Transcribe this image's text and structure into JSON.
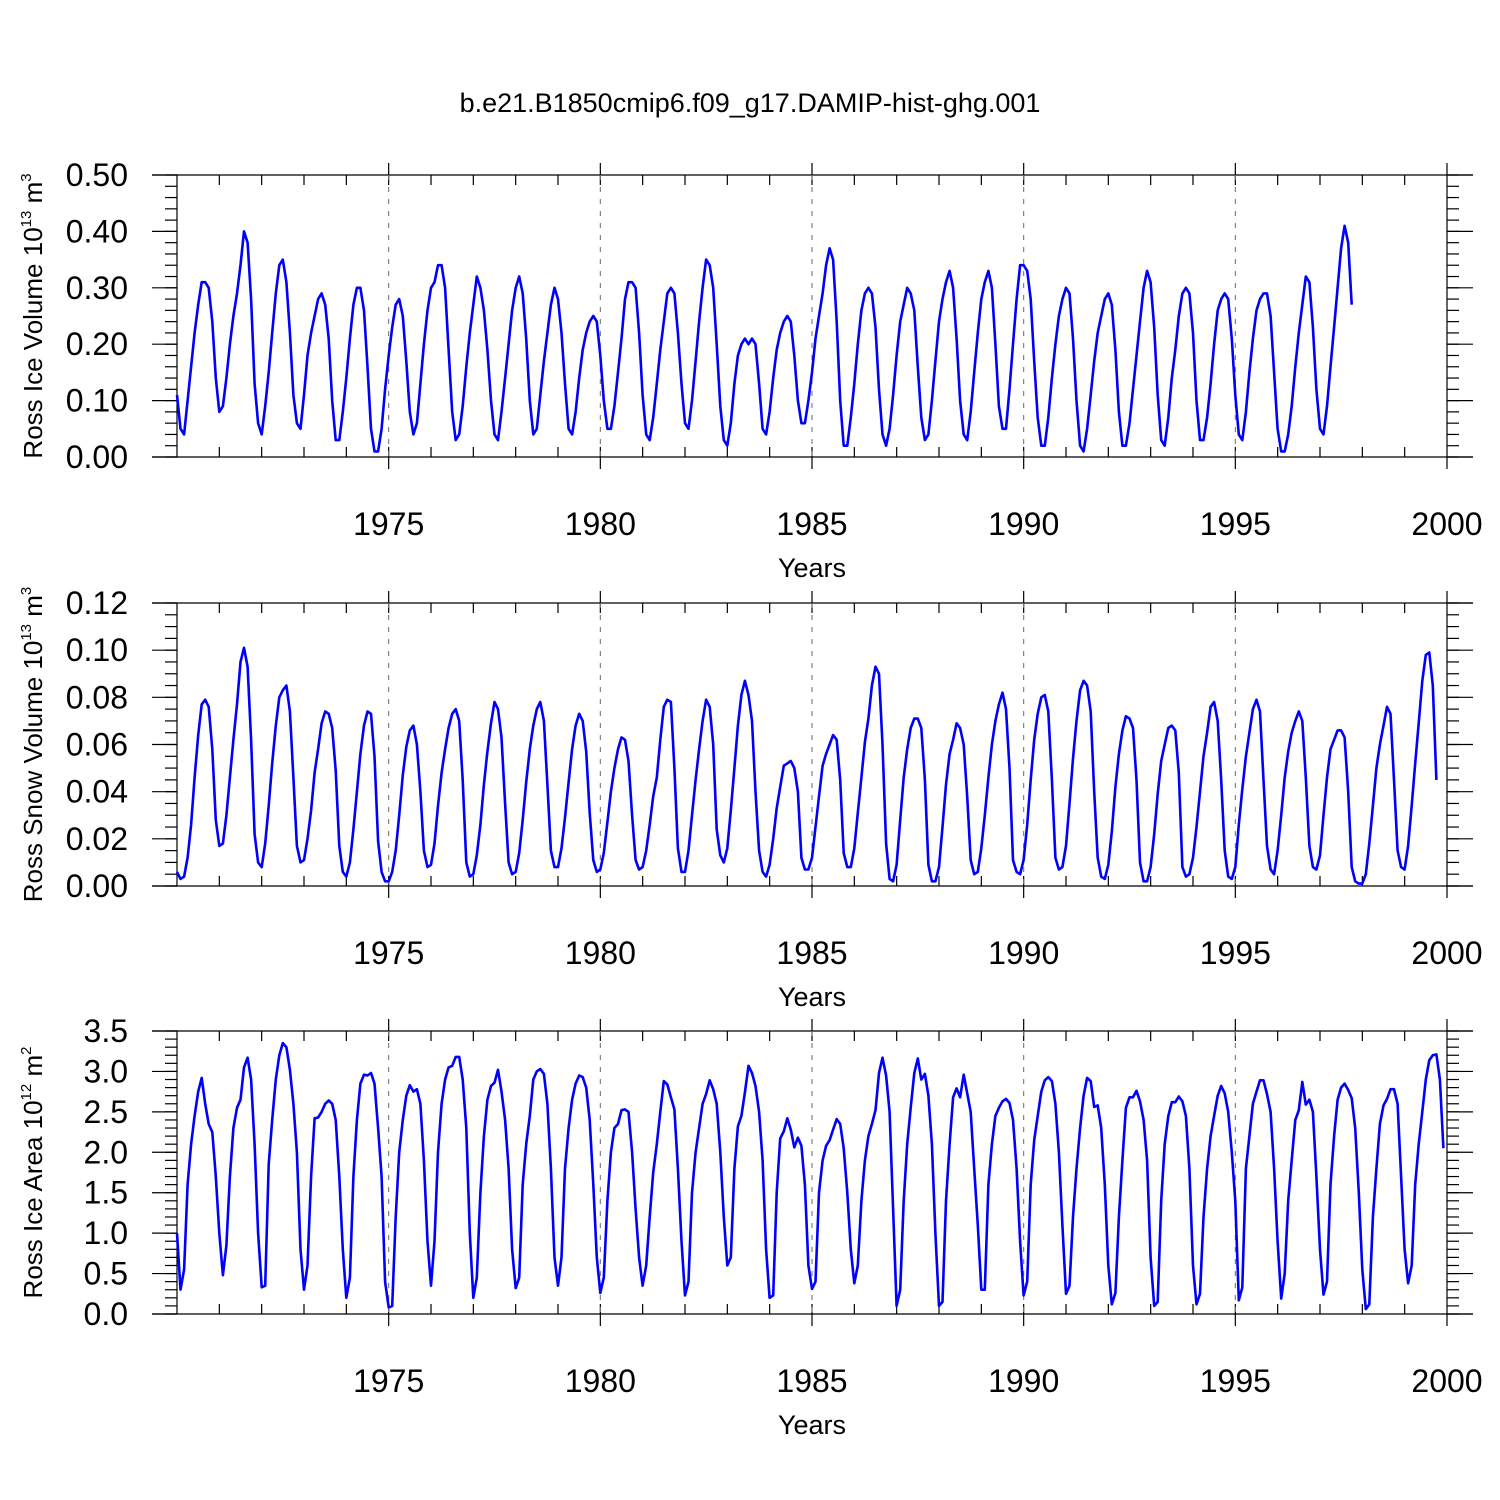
{
  "title": "b.e21.B1850cmip6.f09_g17.DAMIP-hist-ghg.001",
  "colors": {
    "series": "#0000ff",
    "axes": "#000000",
    "grid": "#777777"
  },
  "chart_data": [
    {
      "type": "line",
      "name": "ross-ice-volume",
      "ylabel_main": "Ross Ice Volume 10",
      "ylabel_exp": "13",
      "ylabel_unit": " m",
      "ylabel_unit_exp": "3",
      "xlabel": "Years",
      "xlim": [
        1970.0,
        2000.0
      ],
      "ylim": [
        0.0,
        0.5
      ],
      "x_ticks": [
        "1975",
        "1980",
        "1985",
        "1990",
        "1995",
        "2000"
      ],
      "x_tick_values": [
        1975,
        1980,
        1985,
        1990,
        1995,
        2000
      ],
      "y_ticks": [
        "0.00",
        "0.10",
        "0.20",
        "0.30",
        "0.40",
        "0.50"
      ],
      "y_tick_values": [
        0.0,
        0.1,
        0.2,
        0.3,
        0.4,
        0.5
      ],
      "y_minor_step": 0.02,
      "grid": "vertical dashed at major x ticks",
      "x_start": 1970.0,
      "x_step": 0.08333,
      "values": [
        0.11,
        0.05,
        0.04,
        0.1,
        0.16,
        0.22,
        0.27,
        0.31,
        0.31,
        0.3,
        0.24,
        0.14,
        0.08,
        0.09,
        0.14,
        0.2,
        0.25,
        0.29,
        0.34,
        0.4,
        0.38,
        0.28,
        0.13,
        0.06,
        0.04,
        0.09,
        0.15,
        0.22,
        0.29,
        0.34,
        0.35,
        0.31,
        0.22,
        0.11,
        0.06,
        0.05,
        0.11,
        0.18,
        0.22,
        0.25,
        0.28,
        0.29,
        0.27,
        0.21,
        0.1,
        0.03,
        0.03,
        0.08,
        0.14,
        0.21,
        0.27,
        0.3,
        0.3,
        0.26,
        0.16,
        0.05,
        0.01,
        0.01,
        0.05,
        0.12,
        0.18,
        0.23,
        0.27,
        0.28,
        0.25,
        0.17,
        0.08,
        0.04,
        0.06,
        0.13,
        0.2,
        0.26,
        0.3,
        0.31,
        0.34,
        0.34,
        0.3,
        0.19,
        0.08,
        0.03,
        0.04,
        0.09,
        0.16,
        0.22,
        0.27,
        0.32,
        0.3,
        0.26,
        0.19,
        0.1,
        0.04,
        0.03,
        0.08,
        0.14,
        0.2,
        0.26,
        0.3,
        0.32,
        0.29,
        0.21,
        0.1,
        0.04,
        0.05,
        0.11,
        0.17,
        0.22,
        0.27,
        0.3,
        0.28,
        0.22,
        0.13,
        0.05,
        0.04,
        0.08,
        0.14,
        0.19,
        0.22,
        0.24,
        0.25,
        0.24,
        0.18,
        0.1,
        0.05,
        0.05,
        0.09,
        0.15,
        0.21,
        0.28,
        0.31,
        0.31,
        0.3,
        0.22,
        0.11,
        0.04,
        0.03,
        0.07,
        0.13,
        0.19,
        0.24,
        0.29,
        0.3,
        0.29,
        0.22,
        0.13,
        0.06,
        0.05,
        0.1,
        0.17,
        0.24,
        0.3,
        0.35,
        0.34,
        0.3,
        0.2,
        0.09,
        0.03,
        0.02,
        0.06,
        0.13,
        0.18,
        0.2,
        0.21,
        0.2,
        0.21,
        0.2,
        0.13,
        0.05,
        0.04,
        0.08,
        0.14,
        0.19,
        0.22,
        0.24,
        0.25,
        0.24,
        0.18,
        0.1,
        0.06,
        0.06,
        0.1,
        0.15,
        0.21,
        0.25,
        0.29,
        0.34,
        0.37,
        0.35,
        0.24,
        0.1,
        0.02,
        0.02,
        0.07,
        0.13,
        0.2,
        0.26,
        0.29,
        0.3,
        0.29,
        0.23,
        0.12,
        0.04,
        0.02,
        0.05,
        0.11,
        0.18,
        0.24,
        0.27,
        0.3,
        0.29,
        0.26,
        0.16,
        0.07,
        0.03,
        0.04,
        0.1,
        0.17,
        0.24,
        0.28,
        0.31,
        0.33,
        0.3,
        0.21,
        0.1,
        0.04,
        0.03,
        0.08,
        0.15,
        0.22,
        0.28,
        0.31,
        0.33,
        0.3,
        0.2,
        0.09,
        0.05,
        0.05,
        0.12,
        0.2,
        0.28,
        0.34,
        0.34,
        0.33,
        0.28,
        0.17,
        0.07,
        0.02,
        0.02,
        0.07,
        0.14,
        0.2,
        0.25,
        0.28,
        0.3,
        0.29,
        0.21,
        0.1,
        0.02,
        0.01,
        0.05,
        0.11,
        0.17,
        0.22,
        0.25,
        0.28,
        0.29,
        0.27,
        0.19,
        0.08,
        0.02,
        0.02,
        0.06,
        0.12,
        0.18,
        0.24,
        0.3,
        0.33,
        0.31,
        0.23,
        0.11,
        0.03,
        0.02,
        0.07,
        0.14,
        0.19,
        0.25,
        0.29,
        0.3,
        0.29,
        0.22,
        0.1,
        0.03,
        0.03,
        0.07,
        0.13,
        0.2,
        0.26,
        0.28,
        0.29,
        0.28,
        0.21,
        0.11,
        0.04,
        0.03,
        0.08,
        0.15,
        0.21,
        0.26,
        0.28,
        0.29,
        0.29,
        0.25,
        0.15,
        0.05,
        0.01,
        0.01,
        0.04,
        0.09,
        0.16,
        0.22,
        0.27,
        0.32,
        0.31,
        0.23,
        0.12,
        0.05,
        0.04,
        0.09,
        0.16,
        0.23,
        0.3,
        0.37,
        0.41,
        0.38,
        0.27
      ]
    },
    {
      "type": "line",
      "name": "ross-snow-volume",
      "ylabel_main": "Ross Snow Volume 10",
      "ylabel_exp": "13",
      "ylabel_unit": " m",
      "ylabel_unit_exp": "3",
      "xlabel": "Years",
      "xlim": [
        1970.0,
        2000.0
      ],
      "ylim": [
        0.0,
        0.12
      ],
      "x_ticks": [
        "1975",
        "1980",
        "1985",
        "1990",
        "1995",
        "2000"
      ],
      "x_tick_values": [
        1975,
        1980,
        1985,
        1990,
        1995,
        2000
      ],
      "y_ticks": [
        "0.00",
        "0.02",
        "0.04",
        "0.06",
        "0.08",
        "0.10",
        "0.12"
      ],
      "y_tick_values": [
        0.0,
        0.02,
        0.04,
        0.06,
        0.08,
        0.1,
        0.12
      ],
      "y_minor_step": 0.005,
      "grid": "vertical dashed at major x ticks",
      "x_start": 1970.0,
      "x_step": 0.08333,
      "values": [
        0.006,
        0.003,
        0.004,
        0.012,
        0.026,
        0.046,
        0.064,
        0.077,
        0.079,
        0.076,
        0.058,
        0.028,
        0.017,
        0.018,
        0.03,
        0.046,
        0.062,
        0.077,
        0.095,
        0.101,
        0.093,
        0.062,
        0.022,
        0.01,
        0.008,
        0.018,
        0.034,
        0.052,
        0.068,
        0.08,
        0.083,
        0.085,
        0.074,
        0.046,
        0.017,
        0.01,
        0.011,
        0.02,
        0.032,
        0.048,
        0.058,
        0.069,
        0.074,
        0.073,
        0.067,
        0.049,
        0.017,
        0.006,
        0.004,
        0.01,
        0.024,
        0.04,
        0.056,
        0.068,
        0.074,
        0.073,
        0.055,
        0.019,
        0.006,
        0.002,
        0.002,
        0.006,
        0.015,
        0.03,
        0.047,
        0.059,
        0.066,
        0.068,
        0.06,
        0.04,
        0.015,
        0.008,
        0.009,
        0.018,
        0.034,
        0.048,
        0.058,
        0.067,
        0.073,
        0.075,
        0.07,
        0.045,
        0.01,
        0.004,
        0.005,
        0.013,
        0.026,
        0.043,
        0.057,
        0.069,
        0.078,
        0.075,
        0.063,
        0.035,
        0.01,
        0.005,
        0.006,
        0.014,
        0.028,
        0.044,
        0.058,
        0.068,
        0.075,
        0.078,
        0.07,
        0.043,
        0.015,
        0.008,
        0.008,
        0.016,
        0.029,
        0.044,
        0.058,
        0.068,
        0.073,
        0.07,
        0.057,
        0.031,
        0.011,
        0.006,
        0.007,
        0.014,
        0.027,
        0.04,
        0.05,
        0.058,
        0.063,
        0.062,
        0.053,
        0.03,
        0.011,
        0.007,
        0.008,
        0.015,
        0.026,
        0.038,
        0.046,
        0.062,
        0.076,
        0.079,
        0.078,
        0.05,
        0.016,
        0.006,
        0.006,
        0.015,
        0.03,
        0.045,
        0.058,
        0.07,
        0.079,
        0.076,
        0.06,
        0.024,
        0.013,
        0.01,
        0.016,
        0.032,
        0.05,
        0.068,
        0.081,
        0.087,
        0.081,
        0.07,
        0.04,
        0.015,
        0.006,
        0.004,
        0.009,
        0.02,
        0.033,
        0.042,
        0.051,
        0.052,
        0.053,
        0.05,
        0.04,
        0.012,
        0.007,
        0.007,
        0.012,
        0.025,
        0.038,
        0.051,
        0.056,
        0.06,
        0.064,
        0.062,
        0.045,
        0.014,
        0.008,
        0.008,
        0.016,
        0.031,
        0.046,
        0.061,
        0.071,
        0.085,
        0.093,
        0.09,
        0.06,
        0.018,
        0.003,
        0.002,
        0.009,
        0.028,
        0.046,
        0.058,
        0.067,
        0.071,
        0.071,
        0.067,
        0.045,
        0.009,
        0.002,
        0.002,
        0.008,
        0.025,
        0.043,
        0.056,
        0.062,
        0.069,
        0.067,
        0.06,
        0.038,
        0.011,
        0.005,
        0.006,
        0.016,
        0.03,
        0.046,
        0.06,
        0.07,
        0.077,
        0.082,
        0.075,
        0.05,
        0.011,
        0.006,
        0.005,
        0.011,
        0.026,
        0.045,
        0.062,
        0.073,
        0.08,
        0.081,
        0.074,
        0.045,
        0.012,
        0.007,
        0.008,
        0.017,
        0.035,
        0.054,
        0.07,
        0.083,
        0.087,
        0.085,
        0.074,
        0.04,
        0.012,
        0.004,
        0.003,
        0.009,
        0.023,
        0.042,
        0.056,
        0.066,
        0.072,
        0.071,
        0.067,
        0.045,
        0.01,
        0.002,
        0.002,
        0.008,
        0.022,
        0.039,
        0.053,
        0.06,
        0.067,
        0.068,
        0.066,
        0.048,
        0.008,
        0.004,
        0.005,
        0.012,
        0.025,
        0.04,
        0.055,
        0.065,
        0.076,
        0.078,
        0.07,
        0.045,
        0.015,
        0.004,
        0.003,
        0.008,
        0.026,
        0.041,
        0.055,
        0.065,
        0.075,
        0.079,
        0.074,
        0.045,
        0.017,
        0.007,
        0.005,
        0.015,
        0.03,
        0.046,
        0.057,
        0.065,
        0.07,
        0.074,
        0.07,
        0.046,
        0.017,
        0.008,
        0.007,
        0.013,
        0.03,
        0.046,
        0.058,
        0.062,
        0.066,
        0.066,
        0.063,
        0.04,
        0.008,
        0.002,
        0.001,
        0.001,
        0.005,
        0.018,
        0.034,
        0.05,
        0.06,
        0.068,
        0.076,
        0.073,
        0.045,
        0.015,
        0.008,
        0.007,
        0.017,
        0.034,
        0.052,
        0.069,
        0.087,
        0.098,
        0.099,
        0.085,
        0.045
      ]
    },
    {
      "type": "line",
      "name": "ross-ice-area",
      "ylabel_main": "Ross Ice Area 10",
      "ylabel_exp": "12",
      "ylabel_unit": " m",
      "ylabel_unit_exp": "2",
      "xlabel": "Years",
      "xlim": [
        1970.0,
        2000.0
      ],
      "ylim": [
        0.0,
        3.5
      ],
      "x_ticks": [
        "1975",
        "1980",
        "1985",
        "1990",
        "1995",
        "2000"
      ],
      "x_tick_values": [
        1975,
        1980,
        1985,
        1990,
        1995,
        2000
      ],
      "y_ticks": [
        "0.0",
        "0.5",
        "1.0",
        "1.5",
        "2.0",
        "2.5",
        "3.0",
        "3.5"
      ],
      "y_tick_values": [
        0.0,
        0.5,
        1.0,
        1.5,
        2.0,
        2.5,
        3.0,
        3.5
      ],
      "y_minor_step": 0.1,
      "grid": "vertical dashed at major x ticks",
      "x_start": 1970.0,
      "x_step": 0.08333,
      "values": [
        1.0,
        0.3,
        0.55,
        1.6,
        2.1,
        2.45,
        2.75,
        2.92,
        2.6,
        2.35,
        2.25,
        1.7,
        1.0,
        0.48,
        0.85,
        1.7,
        2.3,
        2.55,
        2.65,
        3.05,
        3.17,
        2.9,
        2.1,
        1.0,
        0.33,
        0.35,
        1.85,
        2.4,
        2.9,
        3.2,
        3.35,
        3.3,
        3.02,
        2.6,
        2.0,
        0.8,
        0.3,
        0.6,
        1.7,
        2.42,
        2.43,
        2.5,
        2.6,
        2.64,
        2.6,
        2.4,
        1.7,
        0.8,
        0.2,
        0.45,
        1.7,
        2.4,
        2.85,
        2.96,
        2.95,
        2.98,
        2.85,
        2.3,
        1.7,
        0.4,
        0.08,
        0.1,
        1.2,
        2.0,
        2.4,
        2.7,
        2.83,
        2.75,
        2.78,
        2.6,
        1.9,
        0.9,
        0.35,
        0.9,
        2.0,
        2.6,
        2.9,
        3.05,
        3.07,
        3.18,
        3.18,
        2.9,
        2.3,
        1.0,
        0.2,
        0.45,
        1.5,
        2.2,
        2.65,
        2.82,
        2.86,
        3.02,
        2.75,
        2.4,
        1.8,
        0.8,
        0.32,
        0.45,
        1.6,
        2.1,
        2.45,
        2.9,
        3.0,
        3.03,
        2.97,
        2.6,
        1.8,
        0.7,
        0.35,
        0.7,
        1.8,
        2.3,
        2.65,
        2.85,
        2.95,
        2.93,
        2.8,
        2.4,
        1.6,
        0.7,
        0.26,
        0.45,
        1.4,
        2.0,
        2.3,
        2.35,
        2.52,
        2.53,
        2.5,
        2.0,
        1.3,
        0.7,
        0.35,
        0.6,
        1.2,
        1.75,
        2.1,
        2.5,
        2.88,
        2.84,
        2.68,
        2.53,
        1.8,
        0.9,
        0.23,
        0.4,
        1.5,
        2.0,
        2.3,
        2.6,
        2.72,
        2.89,
        2.78,
        2.6,
        2.0,
        1.2,
        0.6,
        0.7,
        1.8,
        2.32,
        2.45,
        2.74,
        3.07,
        2.98,
        2.82,
        2.5,
        1.9,
        0.8,
        0.2,
        0.23,
        1.5,
        2.17,
        2.26,
        2.42,
        2.28,
        2.06,
        2.18,
        2.08,
        1.6,
        0.6,
        0.31,
        0.4,
        1.5,
        1.9,
        2.08,
        2.15,
        2.28,
        2.41,
        2.35,
        2.05,
        1.5,
        0.8,
        0.38,
        0.6,
        1.4,
        1.9,
        2.2,
        2.35,
        2.52,
        2.98,
        3.17,
        2.95,
        2.5,
        1.3,
        0.1,
        0.3,
        1.4,
        2.1,
        2.55,
        2.98,
        3.16,
        2.9,
        2.97,
        2.7,
        2.1,
        1.0,
        0.1,
        0.15,
        1.4,
        2.1,
        2.68,
        2.79,
        2.68,
        2.96,
        2.73,
        2.5,
        1.8,
        1.1,
        0.3,
        0.3,
        1.6,
        2.1,
        2.45,
        2.55,
        2.63,
        2.66,
        2.61,
        2.4,
        1.8,
        0.9,
        0.23,
        0.4,
        1.6,
        2.15,
        2.45,
        2.75,
        2.89,
        2.93,
        2.88,
        2.6,
        2.0,
        1.1,
        0.25,
        0.35,
        1.2,
        1.8,
        2.3,
        2.7,
        2.92,
        2.88,
        2.56,
        2.58,
        2.3,
        1.6,
        0.6,
        0.12,
        0.26,
        1.2,
        1.9,
        2.55,
        2.68,
        2.68,
        2.76,
        2.63,
        2.4,
        1.9,
        0.7,
        0.1,
        0.15,
        1.4,
        2.1,
        2.45,
        2.62,
        2.62,
        2.69,
        2.63,
        2.45,
        1.8,
        0.6,
        0.12,
        0.25,
        1.2,
        1.8,
        2.2,
        2.45,
        2.7,
        2.82,
        2.73,
        2.5,
        2.0,
        1.4,
        0.17,
        0.33,
        1.8,
        2.2,
        2.6,
        2.75,
        2.89,
        2.89,
        2.72,
        2.5,
        1.8,
        0.9,
        0.19,
        0.5,
        1.4,
        1.9,
        2.4,
        2.52,
        2.87,
        2.59,
        2.65,
        2.5,
        1.7,
        0.8,
        0.24,
        0.4,
        1.6,
        2.2,
        2.65,
        2.8,
        2.85,
        2.77,
        2.67,
        2.3,
        1.5,
        0.55,
        0.06,
        0.12,
        1.2,
        1.8,
        2.35,
        2.58,
        2.66,
        2.78,
        2.78,
        2.6,
        1.7,
        0.8,
        0.38,
        0.6,
        1.6,
        2.1,
        2.5,
        2.9,
        3.14,
        3.2,
        3.21,
        2.9,
        2.05
      ]
    }
  ]
}
